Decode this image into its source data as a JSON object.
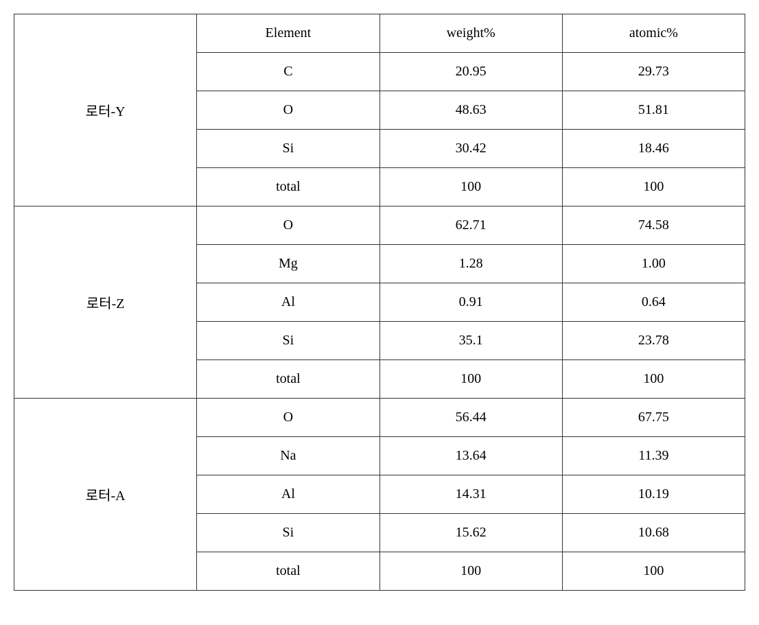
{
  "headers": {
    "element": "Element",
    "weight": "weight%",
    "atomic": "atomic%"
  },
  "groups": [
    {
      "sample": "로터-Y",
      "rows": [
        {
          "element": "C",
          "weight": "20.95",
          "atomic": "29.73"
        },
        {
          "element": "O",
          "weight": "48.63",
          "atomic": "51.81"
        },
        {
          "element": "Si",
          "weight": "30.42",
          "atomic": "18.46"
        },
        {
          "element": "total",
          "weight": "100",
          "atomic": "100"
        }
      ]
    },
    {
      "sample": "로터-Z",
      "rows": [
        {
          "element": "O",
          "weight": "62.71",
          "atomic": "74.58"
        },
        {
          "element": "Mg",
          "weight": "1.28",
          "atomic": "1.00"
        },
        {
          "element": "Al",
          "weight": "0.91",
          "atomic": "0.64"
        },
        {
          "element": "Si",
          "weight": "35.1",
          "atomic": "23.78"
        },
        {
          "element": "total",
          "weight": "100",
          "atomic": "100"
        }
      ]
    },
    {
      "sample": "로터-A",
      "rows": [
        {
          "element": "O",
          "weight": "56.44",
          "atomic": "67.75"
        },
        {
          "element": "Na",
          "weight": "13.64",
          "atomic": "11.39"
        },
        {
          "element": "Al",
          "weight": "14.31",
          "atomic": "10.19"
        },
        {
          "element": "Si",
          "weight": "15.62",
          "atomic": "10.68"
        },
        {
          "element": "total",
          "weight": "100",
          "atomic": "100"
        }
      ]
    }
  ]
}
